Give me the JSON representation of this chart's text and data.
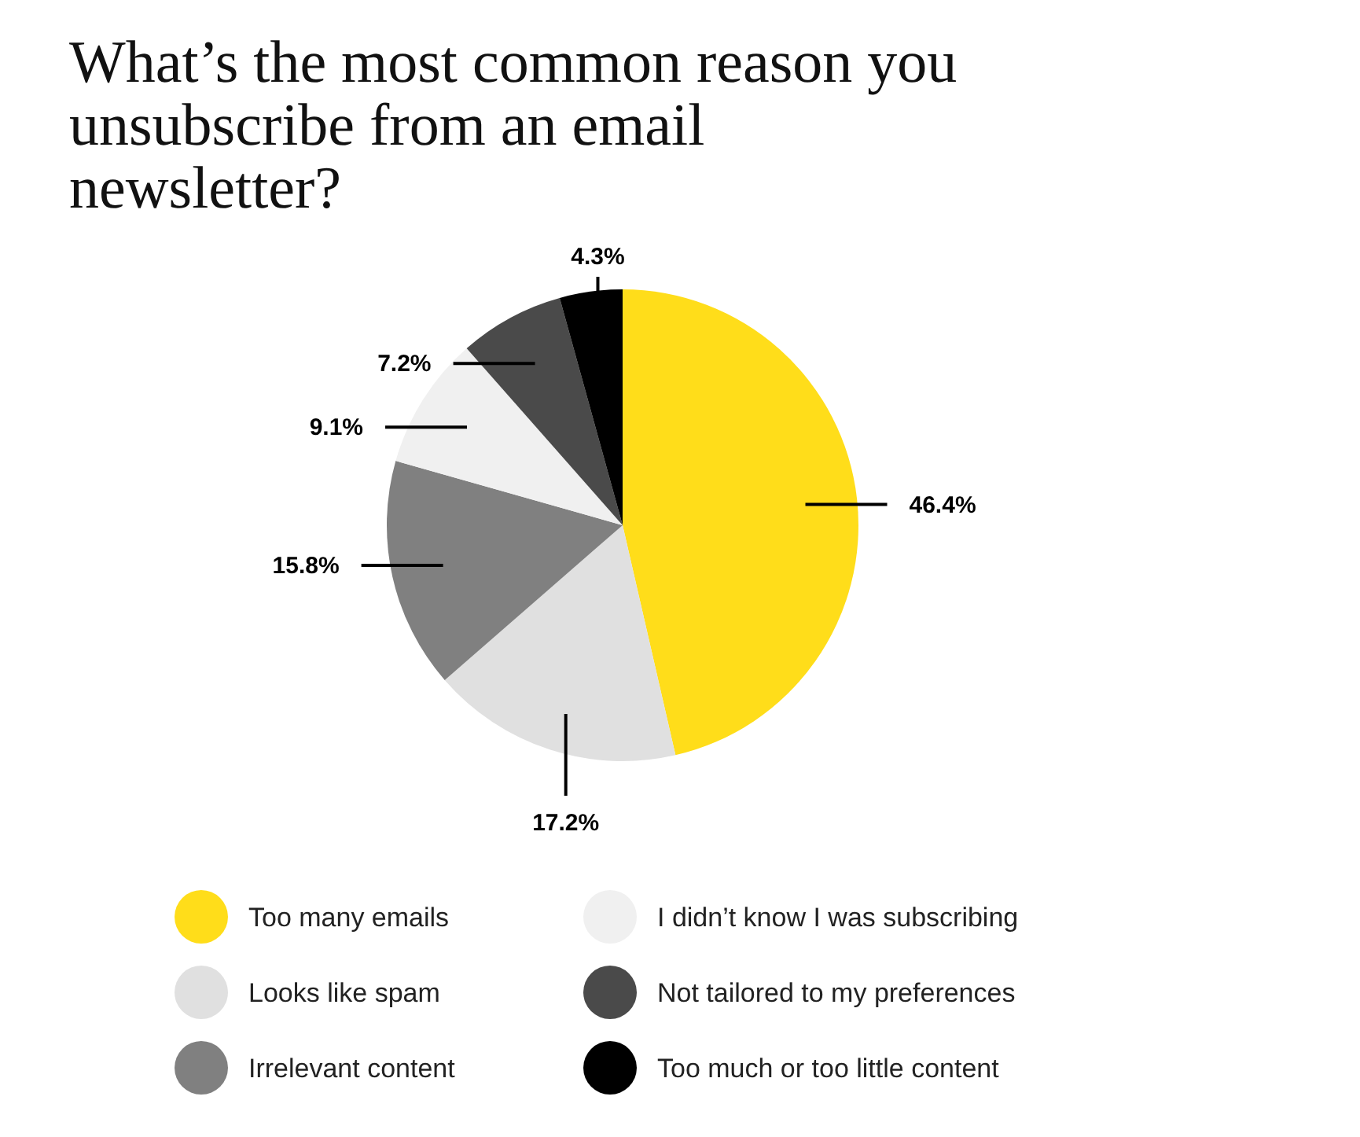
{
  "chart_data": {
    "type": "pie",
    "title": "What’s the most common reason you unsubscribe from an email newsletter?",
    "categories": [
      "Too many emails",
      "Looks like spam",
      "Irrelevant content",
      "I didn’t know I was subscribing",
      "Not tailored to my preferences",
      "Too much or too little content"
    ],
    "values": [
      46.4,
      17.2,
      15.8,
      9.1,
      7.2,
      4.3
    ],
    "colors": [
      "#ffdd1a",
      "#e0e0e0",
      "#808080",
      "#f0f0f0",
      "#4a4a4a",
      "#000000"
    ],
    "value_labels": [
      "46.4%",
      "17.2%",
      "15.8%",
      "9.1%",
      "7.2%",
      "4.3%"
    ],
    "legend": "bottom"
  }
}
